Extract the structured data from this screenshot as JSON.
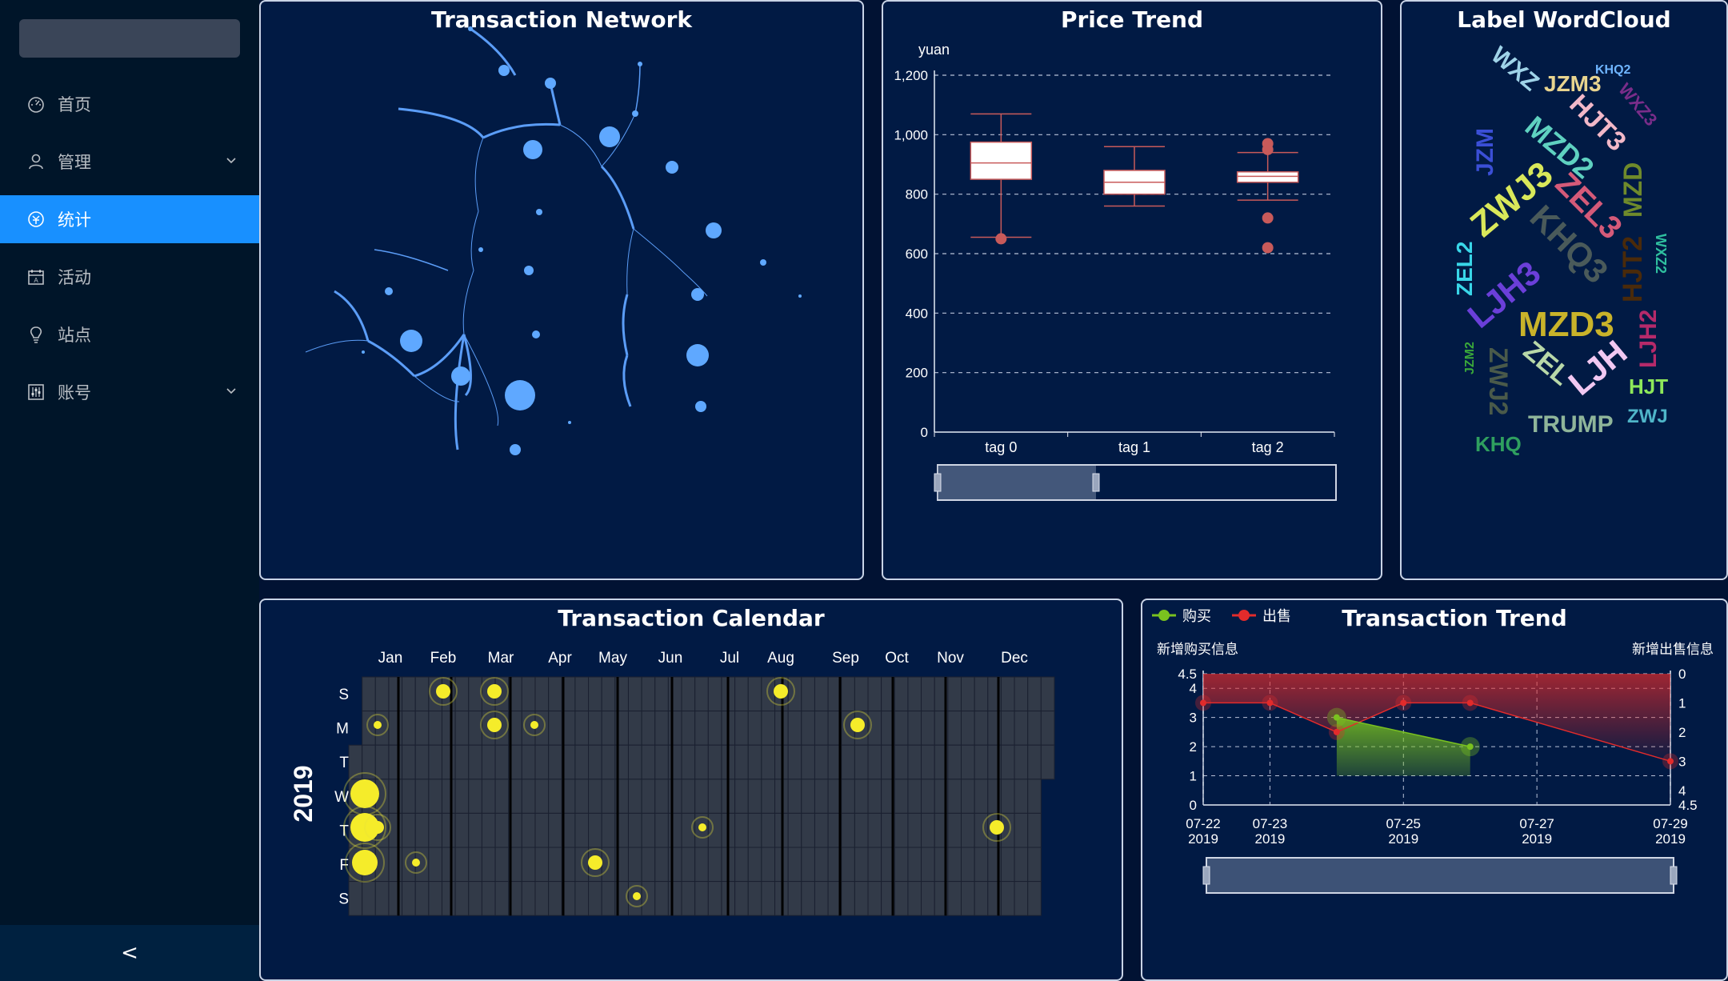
{
  "sidebar": {
    "items": [
      {
        "label": "首页",
        "icon": "dashboard-icon",
        "active": false,
        "has_children": false
      },
      {
        "label": "管理",
        "icon": "user-icon",
        "active": false,
        "has_children": true
      },
      {
        "label": "统计",
        "icon": "statistics-icon",
        "active": true,
        "has_children": false
      },
      {
        "label": "活动",
        "icon": "calendar-icon",
        "active": false,
        "has_children": false
      },
      {
        "label": "站点",
        "icon": "bulb-icon",
        "active": false,
        "has_children": false
      },
      {
        "label": "账号",
        "icon": "sliders-icon",
        "active": false,
        "has_children": true
      }
    ],
    "collapse_label": "<"
  },
  "network": {
    "title": "Transaction Network"
  },
  "price": {
    "title": "Price Trend",
    "chart_data": {
      "type": "boxplot",
      "title": "Price Trend",
      "ylabel": "yuan",
      "ylim": [
        0,
        1200
      ],
      "yticks": [
        "0",
        "200",
        "400",
        "600",
        "800",
        "1,000",
        "1,200"
      ],
      "categories": [
        "tag 0",
        "tag 1",
        "tag 2"
      ],
      "boxes": [
        {
          "min": 655,
          "q1": 850,
          "median": 905,
          "q3": 975,
          "max": 1070,
          "outliers": [
            650
          ]
        },
        {
          "min": 760,
          "q1": 800,
          "median": 840,
          "q3": 880,
          "max": 960,
          "outliers": []
        },
        {
          "min": 780,
          "q1": 840,
          "median": 860,
          "q3": 875,
          "max": 940,
          "outliers": [
            950,
            970,
            720,
            620
          ]
        }
      ]
    }
  },
  "wordcloud": {
    "title": "Label WordCloud",
    "words": [
      {
        "text": "KHQ2",
        "color": "#6fb5ff"
      },
      {
        "text": "WXZ",
        "color": "#9fd3e8"
      },
      {
        "text": "JZM3",
        "color": "#e8d48f"
      },
      {
        "text": "WXZ3",
        "color": "#7a2d8a"
      },
      {
        "text": "HJT3",
        "color": "#f2b8c8"
      },
      {
        "text": "JZM",
        "color": "#3b4fd6"
      },
      {
        "text": "MZD2",
        "color": "#5fd1c0"
      },
      {
        "text": "MZD",
        "color": "#6f8a2b"
      },
      {
        "text": "ZWJ3",
        "color": "#d9e85a"
      },
      {
        "text": "ZEL3",
        "color": "#d55a79"
      },
      {
        "text": "KHQ3",
        "color": "#4a5a5a"
      },
      {
        "text": "HJT2",
        "color": "#4a2a0a"
      },
      {
        "text": "WXZ2",
        "color": "#2fbf9f"
      },
      {
        "text": "ZEL2",
        "color": "#39d6e8"
      },
      {
        "text": "LJH3",
        "color": "#6b3fd9"
      },
      {
        "text": "MZD3",
        "color": "#c9b32a"
      },
      {
        "text": "LJH2",
        "color": "#b52a6a"
      },
      {
        "text": "JZM2",
        "color": "#3aa83a"
      },
      {
        "text": "ZWJ2",
        "color": "#4a5a4a"
      },
      {
        "text": "ZEL",
        "color": "#b8d8a8"
      },
      {
        "text": "LJH",
        "color": "#f2c8f2"
      },
      {
        "text": "HJT",
        "color": "#8de85a"
      },
      {
        "text": "TRUMP",
        "color": "#8fb59a"
      },
      {
        "text": "ZWJ",
        "color": "#4fb5c8"
      },
      {
        "text": "KHQ",
        "color": "#2f9f5f"
      }
    ]
  },
  "calendar": {
    "title": "Transaction Calendar",
    "year": "2019",
    "months": [
      "Jan",
      "Feb",
      "Mar",
      "Apr",
      "May",
      "Jun",
      "Jul",
      "Aug",
      "Sep",
      "Oct",
      "Nov",
      "Dec"
    ],
    "weekdays": [
      "S",
      "M",
      "T",
      "W",
      "T",
      "F",
      "S"
    ]
  },
  "trend": {
    "title": "Transaction Trend",
    "legend": [
      {
        "label": "购买",
        "color": "#7ac21f"
      },
      {
        "label": "出售",
        "color": "#e22b2b"
      }
    ],
    "left_axis_label": "新增购买信息",
    "right_axis_label": "新增出售信息",
    "chart_data": {
      "type": "line",
      "title": "Transaction Trend",
      "x_ticks": [
        [
          "07-22",
          "2019"
        ],
        [
          "07-23",
          "2019"
        ],
        [
          "07-25",
          "2019"
        ],
        [
          "07-27",
          "2019"
        ],
        [
          "07-29",
          "2019"
        ]
      ],
      "left_y_ticks": [
        "0",
        "1",
        "2",
        "3",
        "4",
        "4.5"
      ],
      "right_y_ticks": [
        "0",
        "1",
        "2",
        "3",
        "4",
        "4.5"
      ],
      "left_ylim": [
        0,
        4.5
      ],
      "right_ylim": [
        0,
        4.5
      ],
      "series": [
        {
          "name": "购买",
          "axis": "left",
          "points": [
            [
              "2019-07-24",
              3
            ],
            [
              "2019-07-26",
              2
            ]
          ]
        },
        {
          "name": "出售",
          "axis": "right",
          "points": [
            [
              "2019-07-22",
              1
            ],
            [
              "2019-07-23",
              1
            ],
            [
              "2019-07-24",
              2
            ],
            [
              "2019-07-25",
              1
            ],
            [
              "2019-07-26",
              1
            ],
            [
              "2019-07-29",
              3
            ]
          ]
        }
      ]
    }
  }
}
